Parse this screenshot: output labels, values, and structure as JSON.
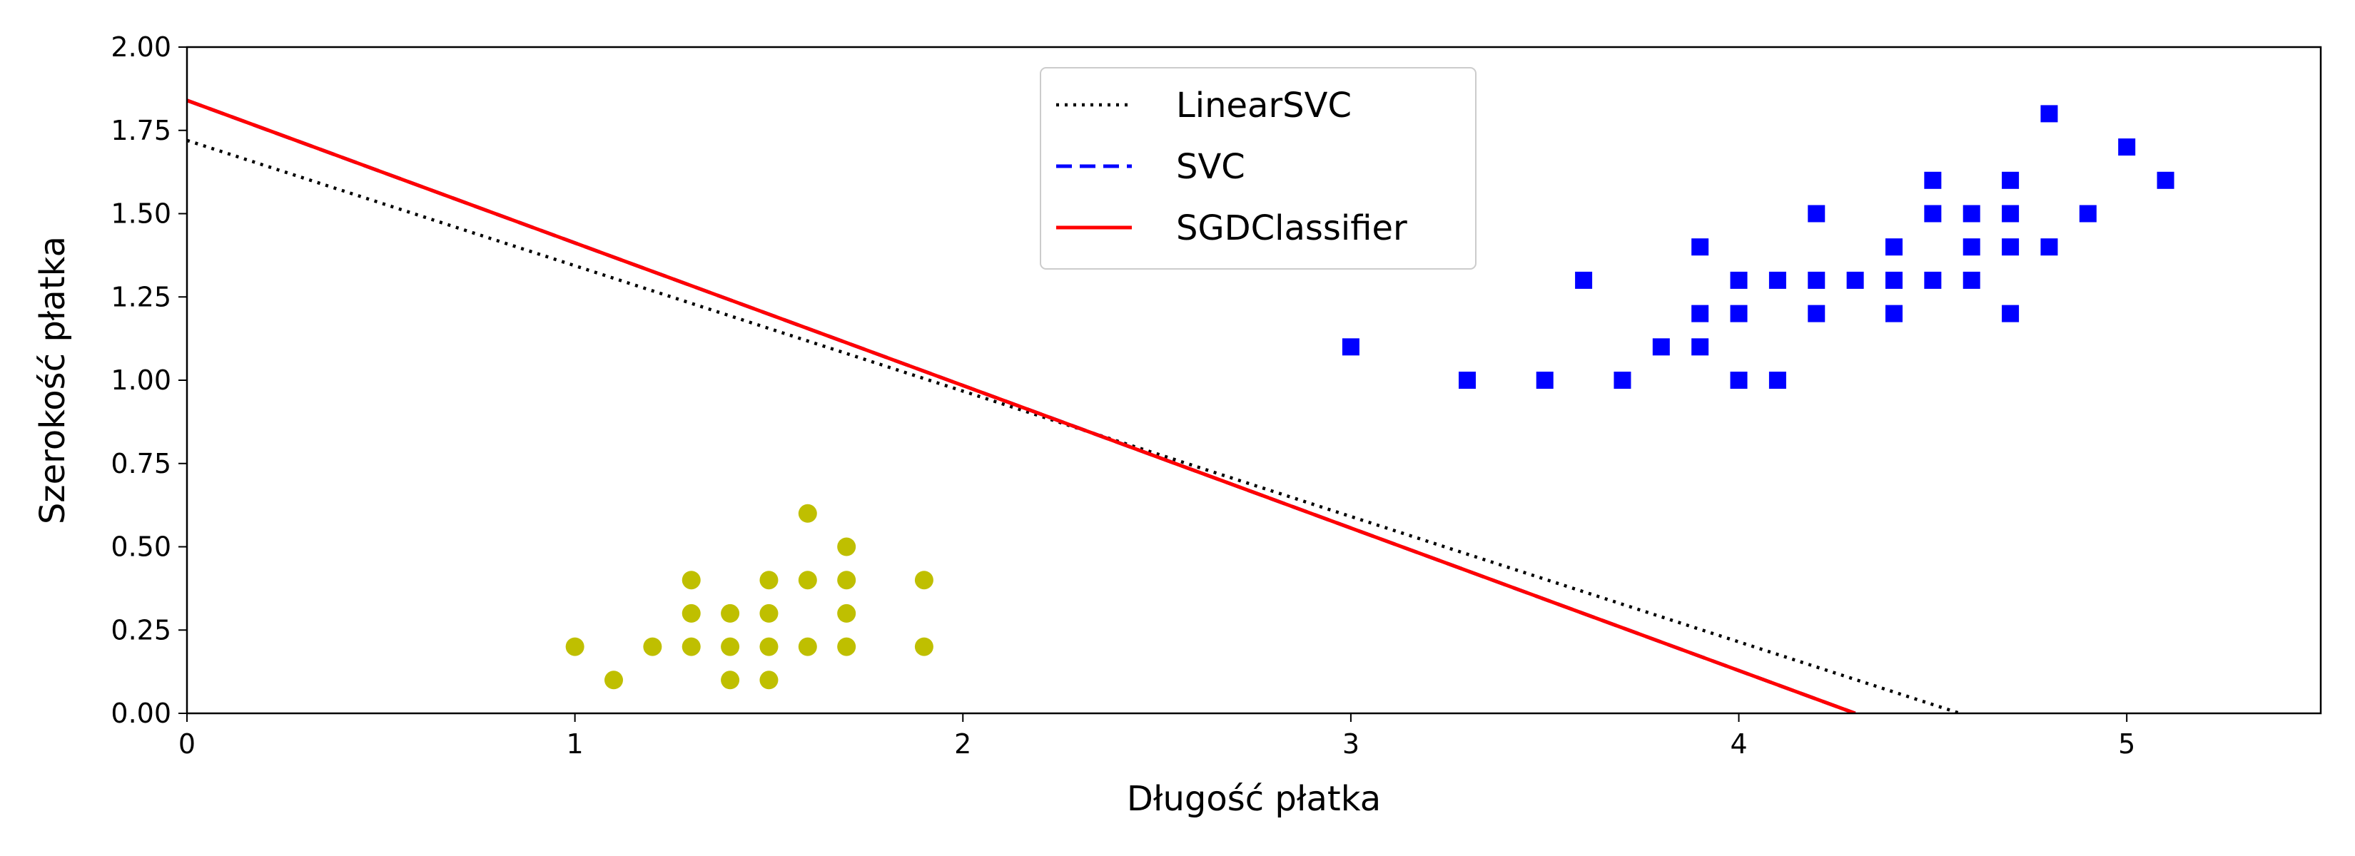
{
  "chart_data": {
    "type": "scatter",
    "xlabel": "Długość płatka",
    "ylabel": "Szerokość płatka",
    "xlim": [
      0,
      5.5
    ],
    "ylim": [
      0,
      2
    ],
    "xticks": [
      {
        "value": 0,
        "label": "0"
      },
      {
        "value": 1,
        "label": "1"
      },
      {
        "value": 2,
        "label": "2"
      },
      {
        "value": 3,
        "label": "3"
      },
      {
        "value": 4,
        "label": "4"
      },
      {
        "value": 5,
        "label": "5"
      }
    ],
    "yticks": [
      {
        "value": 0,
        "label": "0.00"
      },
      {
        "value": 0.25,
        "label": "0.25"
      },
      {
        "value": 0.5,
        "label": "0.50"
      },
      {
        "value": 0.75,
        "label": "0.75"
      },
      {
        "value": 1.0,
        "label": "1.00"
      },
      {
        "value": 1.25,
        "label": "1.25"
      },
      {
        "value": 1.5,
        "label": "1.50"
      },
      {
        "value": 1.75,
        "label": "1.75"
      },
      {
        "value": 2.0,
        "label": "2.00"
      }
    ],
    "grid": false,
    "legend_position": "top-center",
    "scatter_series": [
      {
        "marker": "circle",
        "color": "#bfbf00",
        "points": [
          [
            1.0,
            0.2
          ],
          [
            1.1,
            0.1
          ],
          [
            1.2,
            0.2
          ],
          [
            1.3,
            0.2
          ],
          [
            1.3,
            0.3
          ],
          [
            1.3,
            0.4
          ],
          [
            1.4,
            0.1
          ],
          [
            1.4,
            0.2
          ],
          [
            1.4,
            0.3
          ],
          [
            1.5,
            0.1
          ],
          [
            1.5,
            0.2
          ],
          [
            1.5,
            0.3
          ],
          [
            1.5,
            0.4
          ],
          [
            1.6,
            0.2
          ],
          [
            1.6,
            0.4
          ],
          [
            1.6,
            0.6
          ],
          [
            1.7,
            0.2
          ],
          [
            1.7,
            0.3
          ],
          [
            1.7,
            0.4
          ],
          [
            1.7,
            0.5
          ],
          [
            1.9,
            0.2
          ],
          [
            1.9,
            0.4
          ]
        ]
      },
      {
        "marker": "square",
        "color": "#0000ff",
        "points": [
          [
            3.0,
            1.1
          ],
          [
            3.3,
            1.0
          ],
          [
            3.5,
            1.0
          ],
          [
            3.6,
            1.3
          ],
          [
            3.7,
            1.0
          ],
          [
            3.8,
            1.1
          ],
          [
            3.9,
            1.1
          ],
          [
            3.9,
            1.2
          ],
          [
            3.9,
            1.4
          ],
          [
            4.0,
            1.0
          ],
          [
            4.0,
            1.2
          ],
          [
            4.0,
            1.3
          ],
          [
            4.1,
            1.0
          ],
          [
            4.1,
            1.3
          ],
          [
            4.2,
            1.2
          ],
          [
            4.2,
            1.3
          ],
          [
            4.2,
            1.5
          ],
          [
            4.3,
            1.3
          ],
          [
            4.4,
            1.2
          ],
          [
            4.4,
            1.3
          ],
          [
            4.4,
            1.4
          ],
          [
            4.5,
            1.3
          ],
          [
            4.5,
            1.5
          ],
          [
            4.5,
            1.6
          ],
          [
            4.6,
            1.3
          ],
          [
            4.6,
            1.4
          ],
          [
            4.6,
            1.5
          ],
          [
            4.7,
            1.2
          ],
          [
            4.7,
            1.4
          ],
          [
            4.7,
            1.5
          ],
          [
            4.7,
            1.6
          ],
          [
            4.8,
            1.4
          ],
          [
            4.8,
            1.8
          ],
          [
            4.9,
            1.5
          ],
          [
            5.0,
            1.7
          ],
          [
            5.1,
            1.6
          ]
        ]
      }
    ],
    "line_series": [
      {
        "name": "LinearSVC",
        "style": "dotted",
        "color": "#000000",
        "x": [
          0,
          4.57
        ],
        "y": [
          1.72,
          0
        ]
      },
      {
        "name": "SVC",
        "style": "dashed",
        "color": "#0000ff",
        "x": [
          0,
          4.3
        ],
        "y": [
          1.84,
          0
        ]
      },
      {
        "name": "SGDClassifier",
        "style": "solid",
        "color": "#ff0000",
        "x": [
          0,
          4.3
        ],
        "y": [
          1.84,
          0
        ]
      }
    ]
  }
}
